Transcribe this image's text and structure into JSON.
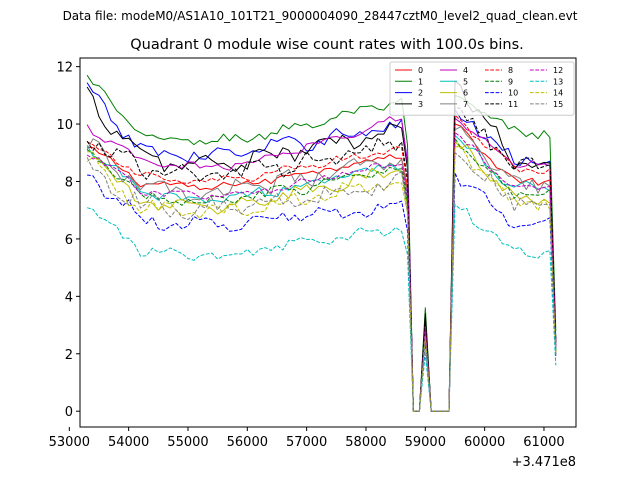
{
  "chart_data": {
    "type": "line",
    "suptitle": "Data file: modeM0/AS1A10_101T21_9000004090_28447cztM0_level2_quad_clean.evt",
    "title": "Quadrant 0 module wise count rates with 100.0s bins.",
    "xlabel": "",
    "ylabel": "",
    "x_offset_label": "+3.471e8",
    "xlim": [
      53180,
      61540
    ],
    "ylim": [
      -0.55,
      12.3
    ],
    "xticks": [
      53000,
      54000,
      55000,
      56000,
      57000,
      58000,
      59000,
      60000,
      61000
    ],
    "xtick_labels": [
      "53000",
      "54000",
      "55000",
      "56000",
      "57000",
      "58000",
      "59000",
      "60000",
      "61000"
    ],
    "yticks": [
      0,
      2,
      4,
      6,
      8,
      10,
      12
    ],
    "ytick_labels": [
      "0",
      "2",
      "4",
      "6",
      "8",
      "10",
      "12"
    ],
    "legend_position": "upper right",
    "legend_columns": 4,
    "time_range": [
      53300,
      61200
    ],
    "bin_width": 100,
    "gaps": [
      [
        58800,
        58900
      ],
      [
        59100,
        59400
      ]
    ],
    "spike_time": 59000,
    "series": [
      {
        "name": "0",
        "color": "#ff0000",
        "dash": "solid",
        "start": 9.2,
        "base": 8.0,
        "end": 9.0,
        "spike": 3.0,
        "post": 10.0,
        "tail": 8.0,
        "final": 2.0
      },
      {
        "name": "1",
        "color": "#008000",
        "dash": "solid",
        "start": 11.6,
        "base": 9.6,
        "end": 10.8,
        "spike": 3.6,
        "post": 11.0,
        "tail": 9.7,
        "final": 2.8
      },
      {
        "name": "2",
        "color": "#0000ff",
        "dash": "solid",
        "start": 11.2,
        "base": 9.1,
        "end": 10.0,
        "spike": 3.2,
        "post": 10.5,
        "tail": 8.8,
        "final": 2.4
      },
      {
        "name": "3",
        "color": "#000000",
        "dash": "solid",
        "start": 11.0,
        "base": 8.8,
        "end": 9.8,
        "spike": 3.4,
        "post": 11.5,
        "tail": 8.7,
        "final": 2.5
      },
      {
        "name": "4",
        "color": "#bf00bf",
        "dash": "solid",
        "start": 9.9,
        "base": 8.7,
        "end": 10.3,
        "spike": 3.0,
        "post": 10.2,
        "tail": 8.6,
        "final": 2.2
      },
      {
        "name": "5",
        "color": "#00bfbf",
        "dash": "solid",
        "start": 9.2,
        "base": 7.6,
        "end": 8.6,
        "spike": 2.8,
        "post": 9.6,
        "tail": 7.8,
        "final": 2.1
      },
      {
        "name": "6",
        "color": "#bfbf00",
        "dash": "solid",
        "start": 9.0,
        "base": 7.3,
        "end": 8.4,
        "spike": 2.7,
        "post": 9.4,
        "tail": 7.4,
        "final": 2.0
      },
      {
        "name": "7",
        "color": "#808080",
        "dash": "solid",
        "start": 9.3,
        "base": 7.8,
        "end": 8.8,
        "spike": 2.9,
        "post": 9.8,
        "tail": 7.9,
        "final": 2.2
      },
      {
        "name": "8",
        "color": "#ff0000",
        "dash": "dashed",
        "start": 9.4,
        "base": 8.2,
        "end": 9.2,
        "spike": 3.0,
        "post": 10.3,
        "tail": 8.4,
        "final": 2.3
      },
      {
        "name": "9",
        "color": "#008000",
        "dash": "dashed",
        "start": 9.1,
        "base": 7.5,
        "end": 8.5,
        "spike": 2.8,
        "post": 9.5,
        "tail": 7.6,
        "final": 2.1
      },
      {
        "name": "10",
        "color": "#0000ff",
        "dash": "dashed",
        "start": 8.3,
        "base": 6.7,
        "end": 7.1,
        "spike": 2.4,
        "post": 8.3,
        "tail": 6.6,
        "final": 1.9
      },
      {
        "name": "11",
        "color": "#000000",
        "dash": "dashed",
        "start": 9.6,
        "base": 8.4,
        "end": 9.4,
        "spike": 3.2,
        "post": 10.6,
        "tail": 8.5,
        "final": 2.4
      },
      {
        "name": "12",
        "color": "#bf00bf",
        "dash": "dashed",
        "start": 9.0,
        "base": 7.7,
        "end": 8.7,
        "spike": 2.9,
        "post": 9.7,
        "tail": 7.8,
        "final": 2.2
      },
      {
        "name": "13",
        "color": "#00bfbf",
        "dash": "dashed",
        "start": 7.1,
        "base": 5.6,
        "end": 6.4,
        "spike": 2.0,
        "post": 7.2,
        "tail": 5.5,
        "final": 1.6
      },
      {
        "name": "14",
        "color": "#bfbf00",
        "dash": "dashed",
        "start": 8.9,
        "base": 7.1,
        "end": 8.1,
        "spike": 2.6,
        "post": 9.2,
        "tail": 7.2,
        "final": 2.0
      },
      {
        "name": "15",
        "color": "#808080",
        "dash": "dashed",
        "start": 8.6,
        "base": 7.2,
        "end": 8.0,
        "spike": 2.6,
        "post": 9.0,
        "tail": 7.3,
        "final": 2.0
      }
    ]
  }
}
